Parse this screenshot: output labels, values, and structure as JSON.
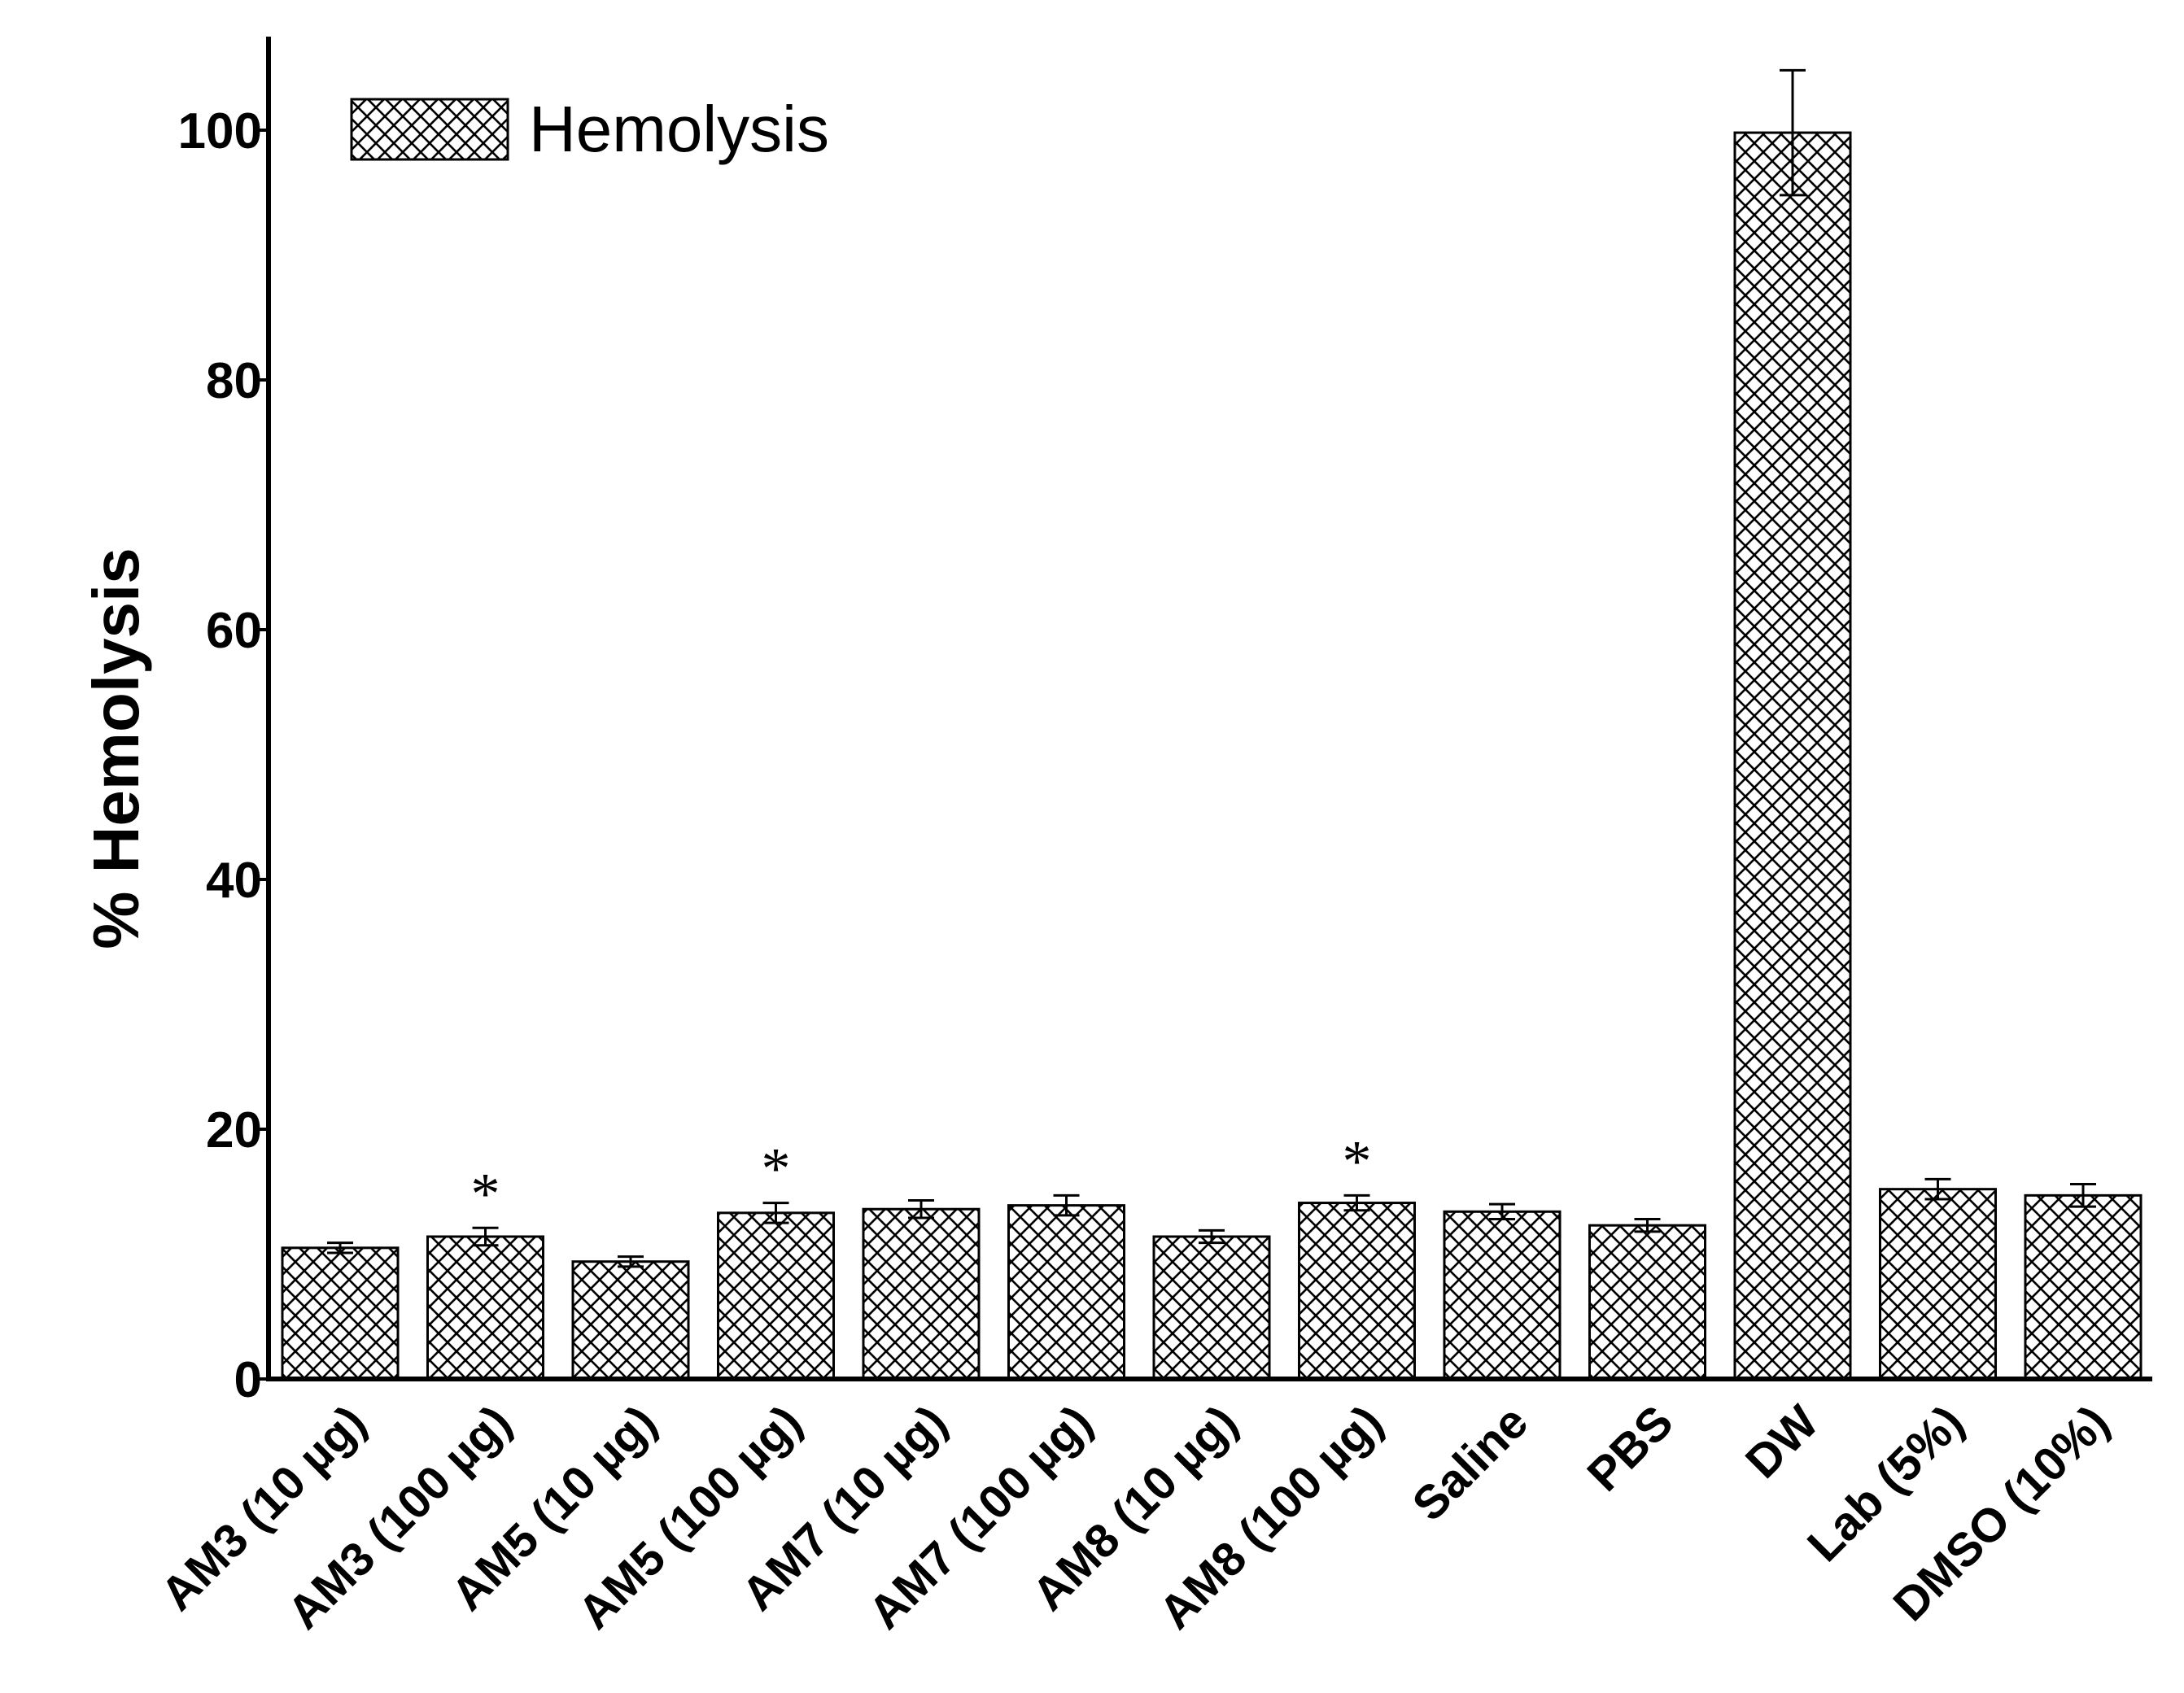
{
  "chart_data": {
    "type": "bar",
    "title": "",
    "xlabel": "",
    "ylabel": "% Hemolysis",
    "ylim": [
      0,
      106
    ],
    "yticks": [
      0,
      20,
      40,
      60,
      80,
      100
    ],
    "yticks_labels": [
      "0",
      "20",
      "40",
      "60",
      "80",
      "100"
    ],
    "grid": false,
    "legend": {
      "position": "top-left",
      "entries": [
        "Hemolysis"
      ]
    },
    "categories": [
      "AM3 (10 µg)",
      "AM3 (100 µg)",
      "AM5 (10 µg)",
      "AM5 (100 µg)",
      "AM7 (10 µg)",
      "AM7 (100 µg)",
      "AM8 (10 µg)",
      "AM8 (100 µg)",
      "Saline",
      "PBS",
      "DW",
      "Lab (5%)",
      "DMSO (10%)"
    ],
    "series": [
      {
        "name": "Hemolysis",
        "values": [
          10.5,
          11.4,
          9.4,
          13.3,
          13.6,
          13.9,
          11.4,
          14.1,
          13.4,
          12.3,
          99.8,
          15.2,
          14.7
        ],
        "errors": [
          0.4,
          0.7,
          0.4,
          0.8,
          0.7,
          0.8,
          0.5,
          0.6,
          0.6,
          0.5,
          5.0,
          0.8,
          0.9
        ]
      }
    ],
    "annotations": [
      {
        "category_index": 1,
        "text": "*"
      },
      {
        "category_index": 3,
        "text": "*"
      },
      {
        "category_index": 7,
        "text": "*"
      }
    ]
  }
}
